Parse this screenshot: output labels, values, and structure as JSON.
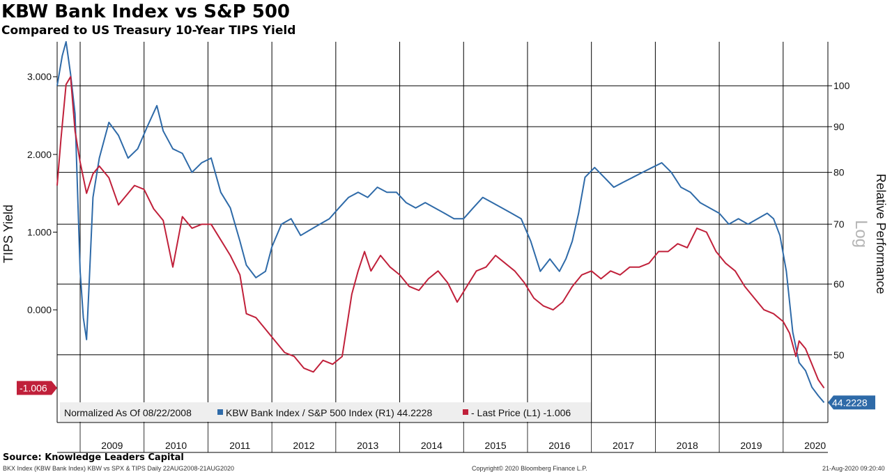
{
  "header": {
    "title": "KBW Bank Index vs S&P 500",
    "subtitle": "Compared to US Treasury 10-Year TIPS Yield"
  },
  "footer": {
    "source": "Source: Knowledge Leaders Capital",
    "left_note": "BKX Index (KBW Bank Index) KBW vs SPX & TIPS  Daily 22AUG2008-21AUG2020",
    "copyright": "Copyright© 2020 Bloomberg Finance L.P.",
    "timestamp": "21-Aug-2020 09:20:40"
  },
  "legend": {
    "normalized": "Normalized As Of 08/22/2008",
    "series1": "KBW Bank Index / S&P 500 Index (R1) 44.2228",
    "series2": "- Last Price (L1) -1.006"
  },
  "badges": {
    "left": "-1.006",
    "right": "44.2228"
  },
  "colors": {
    "blue": "#2e6aa8",
    "red": "#c0203a",
    "grid": "#000000"
  },
  "chart_data": {
    "type": "line",
    "ylabel": "TIPS Yield",
    "y2label": "Relative Performance",
    "y2scale_label": "Log",
    "x_ticks": [
      "2009",
      "2010",
      "2011",
      "2012",
      "2013",
      "2014",
      "2015",
      "2016",
      "2017",
      "2018",
      "2019",
      "2020"
    ],
    "y_ticks": [
      "3.000",
      "2.000",
      "1.000",
      "0.000"
    ],
    "y2_ticks": [
      "100",
      "90",
      "80",
      "70",
      "60",
      "50"
    ],
    "ylim": [
      -1.45,
      3.45
    ],
    "y2lim": [
      42,
      112
    ],
    "xlim": [
      2008.64,
      2020.7
    ],
    "series": [
      {
        "name": "KBW Bank Index / S&P 500 Index (R1)",
        "axis": "right",
        "color": "#2e6aa8",
        "x": [
          2008.64,
          2008.72,
          2008.78,
          2008.85,
          2008.92,
          2009.0,
          2009.05,
          2009.1,
          2009.14,
          2009.2,
          2009.3,
          2009.45,
          2009.6,
          2009.75,
          2009.9,
          2010.05,
          2010.2,
          2010.3,
          2010.45,
          2010.6,
          2010.75,
          2010.9,
          2011.05,
          2011.2,
          2011.35,
          2011.5,
          2011.6,
          2011.75,
          2011.9,
          2012.0,
          2012.15,
          2012.3,
          2012.45,
          2012.6,
          2012.75,
          2012.9,
          2013.05,
          2013.2,
          2013.35,
          2013.5,
          2013.65,
          2013.8,
          2013.95,
          2014.1,
          2014.25,
          2014.4,
          2014.55,
          2014.7,
          2014.85,
          2015.0,
          2015.15,
          2015.3,
          2015.45,
          2015.6,
          2015.75,
          2015.9,
          2016.05,
          2016.2,
          2016.35,
          2016.5,
          2016.6,
          2016.7,
          2016.8,
          2016.9,
          2017.05,
          2017.2,
          2017.35,
          2017.5,
          2017.65,
          2017.8,
          2017.95,
          2018.1,
          2018.25,
          2018.4,
          2018.55,
          2018.7,
          2018.85,
          2019.0,
          2019.15,
          2019.3,
          2019.45,
          2019.6,
          2019.75,
          2019.85,
          2019.95,
          2020.05,
          2020.15,
          2020.25,
          2020.35,
          2020.45,
          2020.55,
          2020.64
        ],
        "y": [
          100,
          108,
          112,
          103,
          93,
          62,
          55,
          52,
          60,
          75,
          83,
          91,
          88,
          83,
          85,
          90,
          95,
          89,
          85,
          84,
          80,
          82,
          83,
          76,
          73,
          67,
          63,
          61,
          62,
          66,
          70,
          71,
          68,
          69,
          70,
          71,
          73,
          75,
          76,
          75,
          77,
          76,
          76,
          74,
          73,
          74,
          73,
          72,
          71,
          71,
          73,
          75,
          74,
          73,
          72,
          71,
          67,
          62,
          64,
          62,
          64,
          67,
          72,
          79,
          81,
          79,
          77,
          78,
          79,
          80,
          81,
          82,
          80,
          77,
          76,
          74,
          73,
          72,
          70,
          71,
          70,
          71,
          72,
          71,
          68,
          62,
          53,
          49,
          48,
          46,
          45,
          44.22
        ]
      },
      {
        "name": "Last Price (L1)",
        "axis": "left",
        "color": "#c0203a",
        "x": [
          2008.64,
          2008.7,
          2008.78,
          2008.85,
          2008.92,
          2009.0,
          2009.1,
          2009.2,
          2009.3,
          2009.45,
          2009.6,
          2009.75,
          2009.85,
          2010.0,
          2010.15,
          2010.3,
          2010.45,
          2010.6,
          2010.75,
          2010.9,
          2011.05,
          2011.2,
          2011.35,
          2011.5,
          2011.6,
          2011.75,
          2011.9,
          2012.05,
          2012.2,
          2012.35,
          2012.5,
          2012.65,
          2012.8,
          2012.95,
          2013.1,
          2013.25,
          2013.35,
          2013.45,
          2013.55,
          2013.7,
          2013.85,
          2014.0,
          2014.15,
          2014.3,
          2014.45,
          2014.6,
          2014.75,
          2014.9,
          2015.05,
          2015.2,
          2015.35,
          2015.5,
          2015.65,
          2015.8,
          2015.95,
          2016.1,
          2016.25,
          2016.4,
          2016.55,
          2016.7,
          2016.85,
          2017.0,
          2017.15,
          2017.3,
          2017.45,
          2017.6,
          2017.75,
          2017.9,
          2018.05,
          2018.2,
          2018.35,
          2018.5,
          2018.65,
          2018.8,
          2018.95,
          2019.1,
          2019.25,
          2019.4,
          2019.55,
          2019.7,
          2019.85,
          2020.0,
          2020.1,
          2020.2,
          2020.25,
          2020.35,
          2020.45,
          2020.55,
          2020.64
        ],
        "y": [
          1.6,
          2.2,
          2.9,
          3.0,
          2.3,
          1.9,
          1.5,
          1.75,
          1.85,
          1.7,
          1.35,
          1.5,
          1.6,
          1.55,
          1.3,
          1.15,
          0.55,
          1.2,
          1.05,
          1.1,
          1.1,
          0.9,
          0.7,
          0.45,
          -0.05,
          -0.1,
          -0.25,
          -0.4,
          -0.55,
          -0.6,
          -0.75,
          -0.8,
          -0.65,
          -0.7,
          -0.6,
          0.2,
          0.5,
          0.75,
          0.5,
          0.7,
          0.55,
          0.45,
          0.3,
          0.25,
          0.4,
          0.5,
          0.35,
          0.1,
          0.3,
          0.5,
          0.55,
          0.7,
          0.6,
          0.5,
          0.35,
          0.15,
          0.05,
          0.0,
          0.1,
          0.3,
          0.45,
          0.5,
          0.4,
          0.5,
          0.45,
          0.55,
          0.55,
          0.6,
          0.75,
          0.75,
          0.85,
          0.8,
          1.05,
          1.0,
          0.75,
          0.6,
          0.5,
          0.3,
          0.15,
          0.0,
          -0.05,
          -0.15,
          -0.3,
          -0.6,
          -0.4,
          -0.5,
          -0.7,
          -0.9,
          -1.006
        ]
      }
    ]
  }
}
